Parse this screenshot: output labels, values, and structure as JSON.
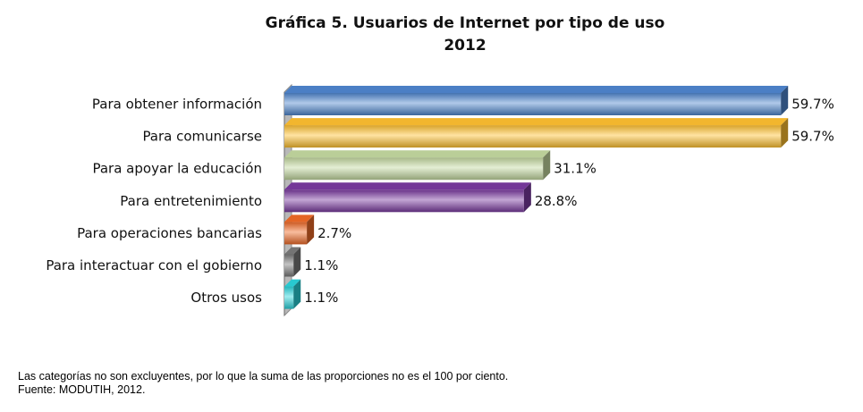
{
  "chart_data": {
    "type": "bar",
    "orientation": "horizontal",
    "title": "Gráfica 5. Usuarios de Internet por tipo de uso",
    "subtitle": "2012",
    "categories": [
      "Para obtener información",
      "Para comunicarse",
      "Para apoyar la educación",
      "Para entretenimiento",
      "Para operaciones bancarias",
      "Para interactuar con el gobierno",
      "Otros usos"
    ],
    "values": [
      59.7,
      59.7,
      31.1,
      28.8,
      2.7,
      1.1,
      1.1
    ],
    "value_labels": [
      "59.7%",
      "59.7%",
      "31.1%",
      "28.8%",
      "2.7%",
      "1.1%",
      "1.1%"
    ],
    "colors": [
      "#4f86cf",
      "#ffc030",
      "#c4d9a0",
      "#7a3aa0",
      "#f06a28",
      "#7a7a7a",
      "#2ad4dc"
    ],
    "xlim": [
      0,
      60
    ],
    "grid": false,
    "legend": "none"
  },
  "footnotes": {
    "note": "Las categorías no son excluyentes, por lo que la suma de las proporciones no es el 100 por ciento.",
    "source": "Fuente: MODUTIH, 2012."
  }
}
